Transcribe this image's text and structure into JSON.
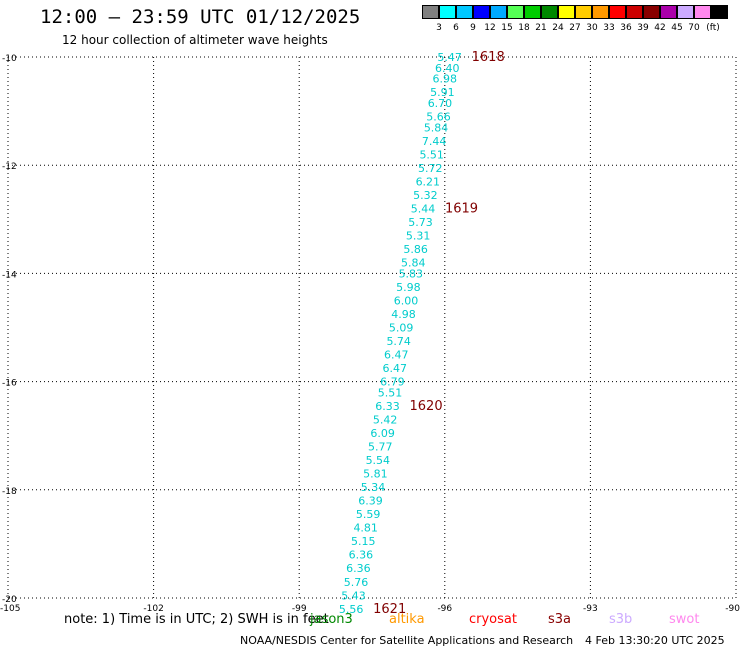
{
  "header": {
    "title": "12:00 — 23:59 UTC 01/12/2025",
    "subtitle": "12 hour collection of altimeter wave heights"
  },
  "legend": {
    "unit": "(ft)",
    "items": [
      {
        "color": "#808080",
        "label": ""
      },
      {
        "color": "#00ffff",
        "label": "3"
      },
      {
        "color": "#00c8ff",
        "label": "6"
      },
      {
        "color": "#0000ff",
        "label": "9"
      },
      {
        "color": "#00aaff",
        "label": "12"
      },
      {
        "color": "#55ff55",
        "label": "15"
      },
      {
        "color": "#00cc00",
        "label": "18"
      },
      {
        "color": "#008800",
        "label": "21"
      },
      {
        "color": "#ffff00",
        "label": "24"
      },
      {
        "color": "#ffcc00",
        "label": "27"
      },
      {
        "color": "#ff9900",
        "label": "30"
      },
      {
        "color": "#ff0000",
        "label": "33"
      },
      {
        "color": "#cc0000",
        "label": "36"
      },
      {
        "color": "#880000",
        "label": "39"
      },
      {
        "color": "#aa00aa",
        "label": "42"
      },
      {
        "color": "#ccaaff",
        "label": "45"
      },
      {
        "color": "#ff88ee",
        "label": "70"
      },
      {
        "color": "#000000",
        "label": ""
      }
    ]
  },
  "axes": {
    "lon_ticks": [
      "-105",
      "-102",
      "-99",
      "-96",
      "-93",
      "-90"
    ],
    "lon_values": [
      -105,
      -102,
      -99,
      -96,
      -93,
      -90
    ],
    "lat_ticks": [
      "-10",
      "-12",
      "-14",
      "-16",
      "-18",
      "-20"
    ],
    "lat_values": [
      -10,
      -12,
      -14,
      -16,
      -18,
      -20
    ],
    "lon_range": [
      -105,
      -90
    ],
    "lat_range": [
      -20,
      -10
    ],
    "grid": "dotted"
  },
  "track": {
    "color": "#00cccc",
    "points": [
      {
        "lat": -10.0,
        "lon": -95.9,
        "swh": "5.47"
      },
      {
        "lat": -10.2,
        "lon": -95.95,
        "swh": "6.40"
      },
      {
        "lat": -10.4,
        "lon": -96.0,
        "swh": "6.98"
      },
      {
        "lat": -10.65,
        "lon": -96.05,
        "swh": "5.91"
      },
      {
        "lat": -10.85,
        "lon": -96.1,
        "swh": "6.70"
      },
      {
        "lat": -11.1,
        "lon": -96.13,
        "swh": "5.66"
      },
      {
        "lat": -11.3,
        "lon": -96.18,
        "swh": "5.84"
      },
      {
        "lat": -11.55,
        "lon": -96.22,
        "swh": "7.44"
      },
      {
        "lat": -11.8,
        "lon": -96.27,
        "swh": "5.51"
      },
      {
        "lat": -12.05,
        "lon": -96.3,
        "swh": "5.72"
      },
      {
        "lat": -12.3,
        "lon": -96.35,
        "swh": "6.21"
      },
      {
        "lat": -12.55,
        "lon": -96.4,
        "swh": "5.32"
      },
      {
        "lat": -12.8,
        "lon": -96.45,
        "swh": "5.44"
      },
      {
        "lat": -13.05,
        "lon": -96.5,
        "swh": "5.73"
      },
      {
        "lat": -13.3,
        "lon": -96.55,
        "swh": "5.31"
      },
      {
        "lat": -13.55,
        "lon": -96.6,
        "swh": "5.86"
      },
      {
        "lat": -13.8,
        "lon": -96.65,
        "swh": "5.84"
      },
      {
        "lat": -14.0,
        "lon": -96.7,
        "swh": "5.83"
      },
      {
        "lat": -14.25,
        "lon": -96.75,
        "swh": "5.98"
      },
      {
        "lat": -14.5,
        "lon": -96.8,
        "swh": "6.00"
      },
      {
        "lat": -14.75,
        "lon": -96.85,
        "swh": "4.98"
      },
      {
        "lat": -15.0,
        "lon": -96.9,
        "swh": "5.09"
      },
      {
        "lat": -15.25,
        "lon": -96.95,
        "swh": "5.74"
      },
      {
        "lat": -15.5,
        "lon": -97.0,
        "swh": "6.47"
      },
      {
        "lat": -15.75,
        "lon": -97.03,
        "swh": "6.47"
      },
      {
        "lat": -16.0,
        "lon": -97.08,
        "swh": "6.79"
      },
      {
        "lat": -16.2,
        "lon": -97.13,
        "swh": "5.51"
      },
      {
        "lat": -16.45,
        "lon": -97.18,
        "swh": "6.33"
      },
      {
        "lat": -16.7,
        "lon": -97.23,
        "swh": "5.42"
      },
      {
        "lat": -16.95,
        "lon": -97.28,
        "swh": "6.09"
      },
      {
        "lat": -17.2,
        "lon": -97.33,
        "swh": "5.77"
      },
      {
        "lat": -17.45,
        "lon": -97.38,
        "swh": "5.54"
      },
      {
        "lat": -17.7,
        "lon": -97.43,
        "swh": "5.81"
      },
      {
        "lat": -17.95,
        "lon": -97.48,
        "swh": "5.34"
      },
      {
        "lat": -18.2,
        "lon": -97.53,
        "swh": "6.39"
      },
      {
        "lat": -18.45,
        "lon": -97.58,
        "swh": "5.59"
      },
      {
        "lat": -18.7,
        "lon": -97.63,
        "swh": "4.81"
      },
      {
        "lat": -18.95,
        "lon": -97.68,
        "swh": "5.15"
      },
      {
        "lat": -19.2,
        "lon": -97.73,
        "swh": "6.36"
      },
      {
        "lat": -19.45,
        "lon": -97.78,
        "swh": "6.36"
      },
      {
        "lat": -19.7,
        "lon": -97.83,
        "swh": "5.76"
      },
      {
        "lat": -19.95,
        "lon": -97.88,
        "swh": "5.43"
      },
      {
        "lat": -20.2,
        "lon": -97.93,
        "swh": "5.56"
      }
    ],
    "time_labels": [
      {
        "text": "1618",
        "lat": -10.0,
        "lon": -95.9
      },
      {
        "text": "1619",
        "lat": -12.8,
        "lon": -96.45
      },
      {
        "text": "1620",
        "lat": -16.45,
        "lon": -97.18
      },
      {
        "text": "1621",
        "lat": -20.2,
        "lon": -97.93
      }
    ],
    "time_label_color": "#800000"
  },
  "footer": {
    "note": "note: 1) Time is in UTC; 2) SWH is in feet",
    "satellites": [
      {
        "name": "jason3",
        "color": "#008800"
      },
      {
        "name": "altika",
        "color": "#ff9900"
      },
      {
        "name": "cryosat",
        "color": "#ff0000"
      },
      {
        "name": "s3a",
        "color": "#880000"
      },
      {
        "name": "s3b",
        "color": "#ccaaff"
      },
      {
        "name": "swot",
        "color": "#ff88ee"
      }
    ],
    "credit": "NOAA/NESDIS Center for Satellite Applications and Research",
    "timestamp": "4 Feb 13:30:20 UTC 2025"
  }
}
